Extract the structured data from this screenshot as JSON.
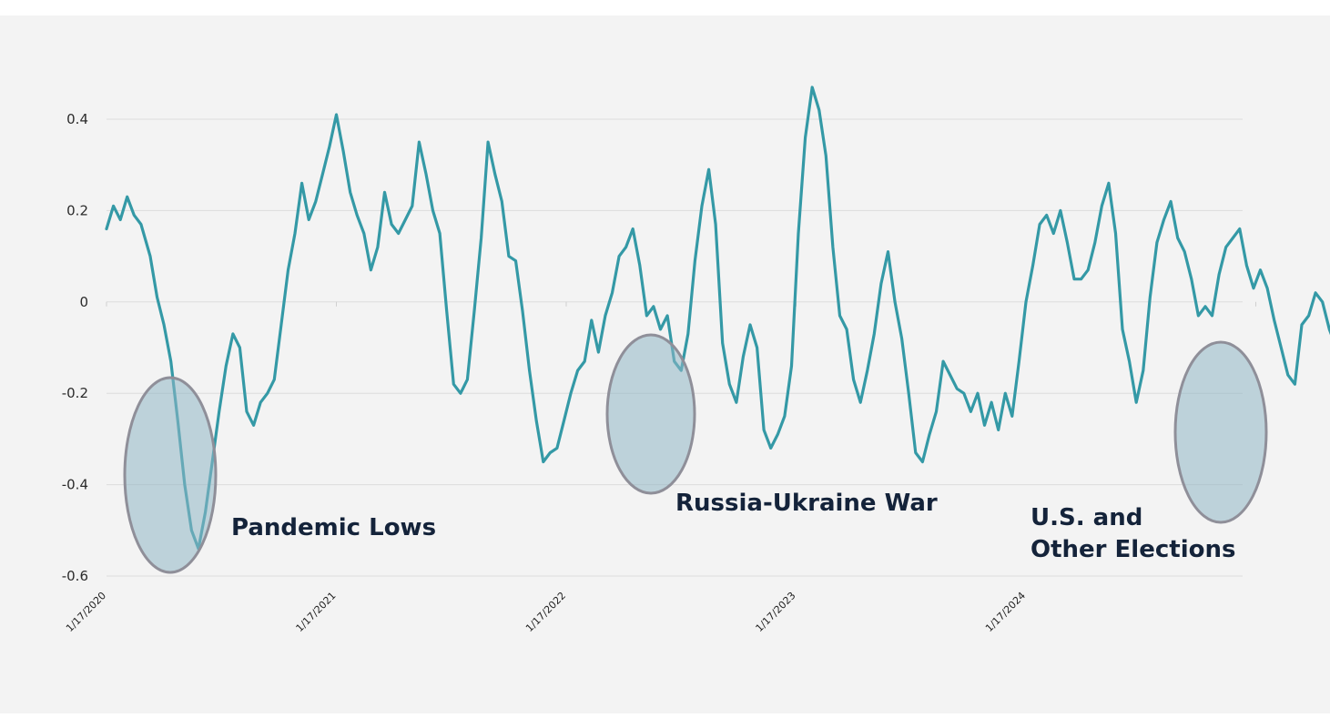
{
  "chart_data": {
    "type": "line",
    "title": "",
    "xlabel": "",
    "ylabel": "",
    "ylim": [
      -0.6,
      0.4
    ],
    "y_ticks": [
      "0.4",
      "0.2",
      "0",
      "-0.2",
      "-0.4",
      "-0.6"
    ],
    "x_ticks": [
      "1/17/2020",
      "1/17/2021",
      "1/17/2022",
      "1/17/2023",
      "1/17/2024"
    ],
    "grid": "horizontal",
    "line_color": "#3499a6",
    "series": [
      {
        "name": "",
        "points": [
          [
            0.0,
            0.16
          ],
          [
            0.03,
            0.21
          ],
          [
            0.06,
            0.18
          ],
          [
            0.09,
            0.23
          ],
          [
            0.12,
            0.19
          ],
          [
            0.15,
            0.17
          ],
          [
            0.19,
            0.1
          ],
          [
            0.22,
            0.01
          ],
          [
            0.25,
            -0.05
          ],
          [
            0.28,
            -0.13
          ],
          [
            0.31,
            -0.26
          ],
          [
            0.34,
            -0.4
          ],
          [
            0.37,
            -0.5
          ],
          [
            0.4,
            -0.54
          ],
          [
            0.43,
            -0.46
          ],
          [
            0.46,
            -0.35
          ],
          [
            0.49,
            -0.24
          ],
          [
            0.52,
            -0.14
          ],
          [
            0.55,
            -0.07
          ],
          [
            0.58,
            -0.1
          ],
          [
            0.61,
            -0.24
          ],
          [
            0.64,
            -0.27
          ],
          [
            0.67,
            -0.22
          ],
          [
            0.7,
            -0.2
          ],
          [
            0.73,
            -0.17
          ],
          [
            0.76,
            -0.05
          ],
          [
            0.79,
            0.07
          ],
          [
            0.82,
            0.15
          ],
          [
            0.85,
            0.26
          ],
          [
            0.88,
            0.18
          ],
          [
            0.91,
            0.22
          ],
          [
            0.94,
            0.28
          ],
          [
            0.97,
            0.34
          ],
          [
            1.0,
            0.41
          ],
          [
            1.03,
            0.33
          ],
          [
            1.06,
            0.24
          ],
          [
            1.09,
            0.19
          ],
          [
            1.12,
            0.15
          ],
          [
            1.15,
            0.07
          ],
          [
            1.18,
            0.12
          ],
          [
            1.21,
            0.24
          ],
          [
            1.24,
            0.17
          ],
          [
            1.27,
            0.15
          ],
          [
            1.3,
            0.18
          ],
          [
            1.33,
            0.21
          ],
          [
            1.36,
            0.35
          ],
          [
            1.39,
            0.28
          ],
          [
            1.42,
            0.2
          ],
          [
            1.45,
            0.15
          ],
          [
            1.48,
            -0.02
          ],
          [
            1.51,
            -0.18
          ],
          [
            1.54,
            -0.2
          ],
          [
            1.57,
            -0.17
          ],
          [
            1.6,
            -0.02
          ],
          [
            1.63,
            0.14
          ],
          [
            1.66,
            0.35
          ],
          [
            1.69,
            0.28
          ],
          [
            1.72,
            0.22
          ],
          [
            1.75,
            0.1
          ],
          [
            1.78,
            0.09
          ],
          [
            1.81,
            -0.02
          ],
          [
            1.84,
            -0.15
          ],
          [
            1.87,
            -0.26
          ],
          [
            1.9,
            -0.35
          ],
          [
            1.93,
            -0.33
          ],
          [
            1.96,
            -0.32
          ],
          [
            1.99,
            -0.26
          ],
          [
            2.02,
            -0.2
          ],
          [
            2.05,
            -0.15
          ],
          [
            2.08,
            -0.13
          ],
          [
            2.11,
            -0.04
          ],
          [
            2.14,
            -0.11
          ],
          [
            2.17,
            -0.03
          ],
          [
            2.2,
            0.02
          ],
          [
            2.23,
            0.1
          ],
          [
            2.26,
            0.12
          ],
          [
            2.29,
            0.16
          ],
          [
            2.32,
            0.08
          ],
          [
            2.35,
            -0.03
          ],
          [
            2.38,
            -0.01
          ],
          [
            2.41,
            -0.06
          ],
          [
            2.44,
            -0.03
          ],
          [
            2.47,
            -0.13
          ],
          [
            2.5,
            -0.15
          ],
          [
            2.53,
            -0.07
          ],
          [
            2.56,
            0.09
          ],
          [
            2.59,
            0.21
          ],
          [
            2.62,
            0.29
          ],
          [
            2.65,
            0.17
          ],
          [
            2.68,
            -0.09
          ],
          [
            2.71,
            -0.18
          ],
          [
            2.74,
            -0.22
          ],
          [
            2.77,
            -0.12
          ],
          [
            2.8,
            -0.05
          ],
          [
            2.83,
            -0.1
          ],
          [
            2.86,
            -0.28
          ],
          [
            2.89,
            -0.32
          ],
          [
            2.92,
            -0.29
          ],
          [
            2.95,
            -0.25
          ],
          [
            2.98,
            -0.14
          ],
          [
            3.01,
            0.15
          ],
          [
            3.04,
            0.36
          ],
          [
            3.07,
            0.47
          ],
          [
            3.1,
            0.42
          ],
          [
            3.13,
            0.32
          ],
          [
            3.16,
            0.12
          ],
          [
            3.19,
            -0.03
          ],
          [
            3.22,
            -0.06
          ],
          [
            3.25,
            -0.17
          ],
          [
            3.28,
            -0.22
          ],
          [
            3.31,
            -0.15
          ],
          [
            3.34,
            -0.07
          ],
          [
            3.37,
            0.04
          ],
          [
            3.4,
            0.11
          ],
          [
            3.43,
            0.0
          ],
          [
            3.46,
            -0.08
          ],
          [
            3.49,
            -0.2
          ],
          [
            3.52,
            -0.33
          ],
          [
            3.55,
            -0.35
          ],
          [
            3.58,
            -0.29
          ],
          [
            3.61,
            -0.24
          ],
          [
            3.64,
            -0.13
          ],
          [
            3.67,
            -0.16
          ],
          [
            3.7,
            -0.19
          ],
          [
            3.73,
            -0.2
          ],
          [
            3.76,
            -0.24
          ],
          [
            3.79,
            -0.2
          ],
          [
            3.82,
            -0.27
          ],
          [
            3.85,
            -0.22
          ],
          [
            3.88,
            -0.28
          ],
          [
            3.91,
            -0.2
          ],
          [
            3.94,
            -0.25
          ],
          [
            3.97,
            -0.13
          ],
          [
            4.0,
            0.0
          ],
          [
            4.03,
            0.08
          ],
          [
            4.06,
            0.17
          ],
          [
            4.09,
            0.19
          ],
          [
            4.12,
            0.15
          ],
          [
            4.15,
            0.2
          ],
          [
            4.18,
            0.13
          ],
          [
            4.21,
            0.05
          ],
          [
            4.24,
            0.05
          ],
          [
            4.27,
            0.07
          ],
          [
            4.3,
            0.13
          ],
          [
            4.33,
            0.21
          ],
          [
            4.36,
            0.26
          ],
          [
            4.39,
            0.15
          ],
          [
            4.42,
            -0.06
          ],
          [
            4.45,
            -0.13
          ],
          [
            4.48,
            -0.22
          ],
          [
            4.51,
            -0.15
          ],
          [
            4.54,
            0.01
          ],
          [
            4.57,
            0.13
          ],
          [
            4.6,
            0.18
          ],
          [
            4.63,
            0.22
          ],
          [
            4.66,
            0.14
          ],
          [
            4.69,
            0.11
          ],
          [
            4.72,
            0.05
          ],
          [
            4.75,
            -0.03
          ],
          [
            4.78,
            -0.01
          ],
          [
            4.81,
            -0.03
          ],
          [
            4.84,
            0.06
          ],
          [
            4.87,
            0.12
          ],
          [
            4.9,
            0.14
          ],
          [
            4.93,
            0.16
          ],
          [
            4.96,
            0.08
          ],
          [
            4.99,
            0.03
          ],
          [
            5.02,
            0.07
          ],
          [
            5.05,
            0.03
          ],
          [
            5.08,
            -0.04
          ],
          [
            5.11,
            -0.1
          ],
          [
            5.14,
            -0.16
          ],
          [
            5.17,
            -0.18
          ],
          [
            5.2,
            -0.05
          ],
          [
            5.23,
            -0.03
          ],
          [
            5.26,
            0.02
          ],
          [
            5.29,
            0.0
          ],
          [
            5.32,
            -0.06
          ],
          [
            5.35,
            -0.1
          ],
          [
            5.38,
            -0.14
          ],
          [
            5.41,
            -0.12
          ],
          [
            5.44,
            -0.05
          ],
          [
            5.47,
            0.02
          ],
          [
            5.5,
            0.09
          ],
          [
            5.53,
            0.17
          ],
          [
            5.56,
            0.11
          ],
          [
            5.59,
            0.04
          ],
          [
            5.62,
            0.0
          ],
          [
            5.65,
            0.06
          ],
          [
            5.68,
            0.02
          ],
          [
            5.71,
            -0.02
          ],
          [
            5.74,
            0.03
          ],
          [
            5.77,
            -0.06
          ],
          [
            5.8,
            -0.12
          ],
          [
            5.83,
            -0.1
          ],
          [
            5.86,
            -0.06
          ],
          [
            5.89,
            -0.1
          ],
          [
            5.92,
            -0.16
          ],
          [
            5.95,
            -0.13
          ],
          [
            5.98,
            -0.11
          ],
          [
            6.01,
            -0.15
          ],
          [
            6.04,
            -0.18
          ],
          [
            6.07,
            -0.03
          ],
          [
            6.1,
            0.06
          ],
          [
            6.13,
            0.15
          ],
          [
            6.16,
            0.26
          ],
          [
            6.19,
            0.15
          ],
          [
            6.22,
            0.1
          ],
          [
            6.25,
            0.05
          ],
          [
            6.28,
            -0.05
          ],
          [
            6.31,
            -0.02
          ],
          [
            6.34,
            0.02
          ],
          [
            6.37,
            -0.01
          ],
          [
            6.4,
            0.08
          ],
          [
            6.43,
            0.13
          ],
          [
            6.46,
            -0.03
          ],
          [
            6.49,
            0.05
          ],
          [
            6.52,
            -0.04
          ],
          [
            6.55,
            0.06
          ],
          [
            6.58,
            0.1
          ],
          [
            6.61,
            0.14
          ],
          [
            6.64,
            0.08
          ],
          [
            6.67,
            0.0
          ],
          [
            6.7,
            -0.04
          ],
          [
            6.73,
            -0.12
          ],
          [
            6.76,
            -0.17
          ],
          [
            6.79,
            -0.14
          ],
          [
            6.82,
            -0.08
          ],
          [
            6.85,
            0.0
          ],
          [
            6.88,
            0.07
          ],
          [
            6.91,
            0.06
          ],
          [
            6.94,
            0.04
          ],
          [
            6.97,
            0.02
          ],
          [
            7.0,
            0.05
          ],
          [
            7.03,
            0.01
          ],
          [
            7.06,
            0.08
          ],
          [
            7.09,
            0.15
          ],
          [
            7.12,
            0.23
          ],
          [
            7.15,
            0.37
          ],
          [
            7.18,
            0.42
          ],
          [
            7.21,
            0.28
          ],
          [
            7.24,
            0.32
          ],
          [
            7.27,
            0.18
          ],
          [
            7.3,
            0.04
          ],
          [
            7.33,
            0.06
          ],
          [
            7.36,
            -0.02
          ],
          [
            7.39,
            -0.03
          ],
          [
            7.42,
            0.03
          ],
          [
            7.45,
            0.12
          ],
          [
            7.48,
            0.18
          ],
          [
            7.51,
            0.28
          ],
          [
            7.54,
            0.32
          ],
          [
            7.57,
            0.22
          ],
          [
            7.6,
            0.08
          ],
          [
            7.63,
            -0.05
          ],
          [
            7.66,
            -0.13
          ],
          [
            7.69,
            -0.23
          ],
          [
            7.72,
            -0.21
          ],
          [
            7.75,
            -0.27
          ],
          [
            7.78,
            -0.38
          ],
          [
            7.81,
            -0.42
          ],
          [
            7.84,
            -0.36
          ],
          [
            7.87,
            -0.35
          ],
          [
            7.9,
            -0.25
          ],
          [
            7.93,
            -0.08
          ],
          [
            7.96,
            -0.02
          ]
        ]
      }
    ],
    "annotations": [
      {
        "label": "Pandemic Lows",
        "lines": [
          "Pandemic Lows"
        ]
      },
      {
        "label": "Russia-Ukraine War",
        "lines": [
          "Russia-Ukraine War"
        ]
      },
      {
        "label": "U.S. and Other Elections",
        "lines": [
          "U.S. and",
          "Other Elections"
        ]
      }
    ]
  }
}
